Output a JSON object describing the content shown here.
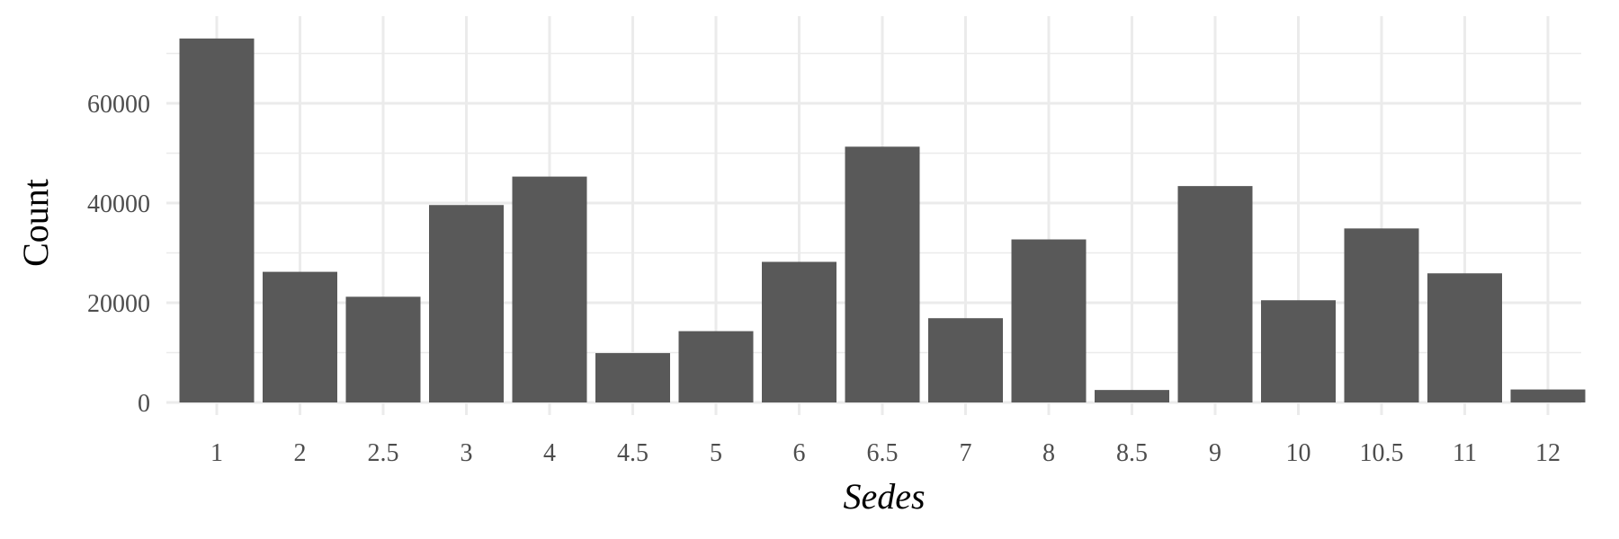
{
  "chart_data": {
    "type": "bar",
    "title": "",
    "xlabel": "Sedes",
    "ylabel": "Count",
    "categories": [
      "1",
      "2",
      "2.5",
      "3",
      "4",
      "4.5",
      "5",
      "6",
      "6.5",
      "7",
      "8",
      "8.5",
      "9",
      "10",
      "10.5",
      "11",
      "12"
    ],
    "values": [
      73000,
      26200,
      21200,
      39600,
      45300,
      9900,
      14300,
      28200,
      51300,
      16900,
      32700,
      2500,
      43400,
      20500,
      34900,
      25900,
      2600
    ],
    "ylim": [
      0,
      73000
    ],
    "yticks": [
      0,
      20000,
      40000,
      60000
    ],
    "grid": true,
    "bar_color": "#595959",
    "grid_color": "#ebebeb"
  }
}
